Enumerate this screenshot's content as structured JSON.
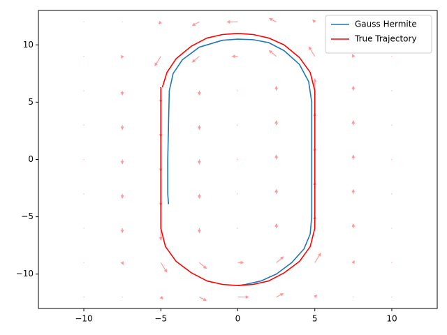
{
  "chart_data": {
    "type": "line",
    "xlim": [
      -12.95,
      12.95
    ],
    "ylim": [
      -13,
      13
    ],
    "xticks": [
      {
        "value": -10,
        "label": "−10"
      },
      {
        "value": -5,
        "label": "−5"
      },
      0,
      5,
      10
    ],
    "yticks": [
      {
        "value": -10,
        "label": "−10"
      },
      {
        "value": -5,
        "label": "−5"
      },
      0,
      5,
      10
    ],
    "legend": "upper right",
    "quiver": {
      "color": "#ff9999",
      "x": [
        -10,
        -7.5,
        -5,
        -2.5,
        0,
        2.5,
        5,
        7.5,
        10,
        -10,
        -7.5,
        -5,
        -2.5,
        0,
        2.5,
        5,
        7.5,
        10,
        -10,
        -7.5,
        -5,
        -2.5,
        0,
        2.5,
        5,
        7.5,
        10,
        -10,
        -7.5,
        -5,
        -2.5,
        0,
        2.5,
        5,
        7.5,
        10,
        -10,
        -7.5,
        -5,
        -2.5,
        0,
        2.5,
        5,
        7.5,
        10,
        -10,
        -7.5,
        -5,
        -2.5,
        0,
        2.5,
        5,
        7.5,
        10,
        -10,
        -7.5,
        -5,
        -2.5,
        0,
        2.5,
        5,
        7.5,
        10,
        -10,
        -7.5,
        -5,
        -2.5,
        0,
        2.5,
        5,
        7.5,
        10,
        -10,
        -7.5,
        -5,
        -2.5,
        0,
        2.5,
        5,
        7.5,
        10
      ],
      "y": [
        12,
        12,
        12,
        12,
        12,
        12,
        12,
        12,
        12,
        9,
        9,
        9,
        9,
        9,
        9,
        9,
        9,
        9,
        6,
        6,
        6,
        6,
        6,
        6,
        6,
        6,
        6,
        3,
        3,
        3,
        3,
        3,
        3,
        3,
        3,
        3,
        0,
        0,
        0,
        0,
        0,
        0,
        0,
        0,
        0,
        -3,
        -3,
        -3,
        -3,
        -3,
        -3,
        -3,
        -3,
        -3,
        -6,
        -6,
        -6,
        -6,
        -6,
        -6,
        -6,
        -6,
        -6,
        -9,
        -9,
        -9,
        -9,
        -9,
        -9,
        -9,
        -9,
        -9,
        -12,
        -12,
        -12,
        -12,
        -12,
        -12,
        -12,
        -12,
        -12
      ],
      "u": [
        0,
        0,
        -0.2,
        -0.6,
        -0.9,
        -0.6,
        -0.2,
        0,
        0,
        0,
        -0.1,
        -0.5,
        -0.6,
        -0.5,
        -0.6,
        -0.5,
        -0.1,
        0,
        0,
        0,
        0,
        0,
        0,
        0,
        0,
        0,
        0,
        0,
        0,
        0,
        0,
        0,
        0,
        0,
        0,
        0,
        0,
        0,
        0,
        0,
        0,
        0,
        0,
        0,
        0,
        0,
        0,
        0,
        0,
        0,
        0,
        0,
        0,
        0,
        0,
        0,
        0,
        0,
        0,
        0,
        0,
        0,
        0,
        0,
        0.1,
        0.5,
        0.6,
        0.5,
        0.6,
        0.5,
        0.1,
        0,
        0,
        0,
        0.2,
        0.6,
        0.9,
        0.6,
        0.2,
        0,
        0
      ],
      "v": [
        0,
        0,
        -0.2,
        -0.3,
        0,
        0.3,
        0.2,
        0,
        0,
        0,
        -0.2,
        -0.8,
        -0.5,
        0,
        0.5,
        0.8,
        0.2,
        0,
        0,
        -0.4,
        -1,
        -0.4,
        0,
        0.4,
        1,
        0.4,
        0,
        0,
        -0.4,
        -1,
        -0.4,
        0,
        0.4,
        1,
        0.4,
        0,
        0,
        -0.4,
        -1,
        -0.4,
        0,
        0.4,
        1,
        0.4,
        0,
        0,
        -0.4,
        -1,
        -0.4,
        0,
        0.4,
        1,
        0.4,
        0,
        0,
        -0.4,
        -1,
        -0.4,
        0,
        0.4,
        1,
        0.4,
        0,
        0,
        -0.2,
        -0.8,
        -0.5,
        0,
        0.5,
        0.8,
        0.2,
        0,
        0,
        0,
        -0.2,
        -0.3,
        0,
        0.3,
        0.2,
        0,
        0
      ]
    },
    "series": [
      {
        "name": "Gauss Hermite",
        "color": "#1f77b4",
        "x": [
          -4.5,
          -4.55,
          -4.55,
          -4.5,
          -4.45,
          -4.2,
          -3.6,
          -2.5,
          -1,
          0,
          1,
          2,
          3,
          4,
          4.6,
          4.8,
          4.8,
          4.8,
          4.7,
          4.3,
          3.5,
          2.5,
          1.5,
          0.5,
          0
        ],
        "values": [
          -3.9,
          -3,
          0,
          3,
          6,
          7.5,
          8.7,
          9.8,
          10.4,
          10.5,
          10.45,
          10.2,
          9.5,
          8.3,
          6.8,
          5,
          0,
          -5,
          -6.5,
          -7.8,
          -9,
          -10,
          -10.6,
          -10.9,
          -11
        ]
      },
      {
        "name": "True Trajectory",
        "color": "#ff0000",
        "x": [
          -4.9,
          -4.6,
          -4,
          -3,
          -2,
          -1,
          0,
          1,
          2,
          3,
          4,
          4.7,
          5,
          5,
          5,
          5,
          5,
          4.7,
          4,
          3,
          2,
          1,
          0,
          -1,
          -2,
          -3,
          -4,
          -4.7,
          -5,
          -5,
          -5,
          -5,
          -5
        ],
        "values": [
          6.3,
          7.6,
          8.8,
          9.9,
          10.6,
          10.9,
          11,
          10.9,
          10.6,
          10,
          8.9,
          7.6,
          6,
          3,
          0,
          -3,
          -6,
          -7.6,
          -8.9,
          -9.9,
          -10.6,
          -10.9,
          -11,
          -10.9,
          -10.6,
          -9.9,
          -8.9,
          -7.6,
          -6,
          -3,
          0,
          3,
          6.3
        ]
      }
    ]
  }
}
